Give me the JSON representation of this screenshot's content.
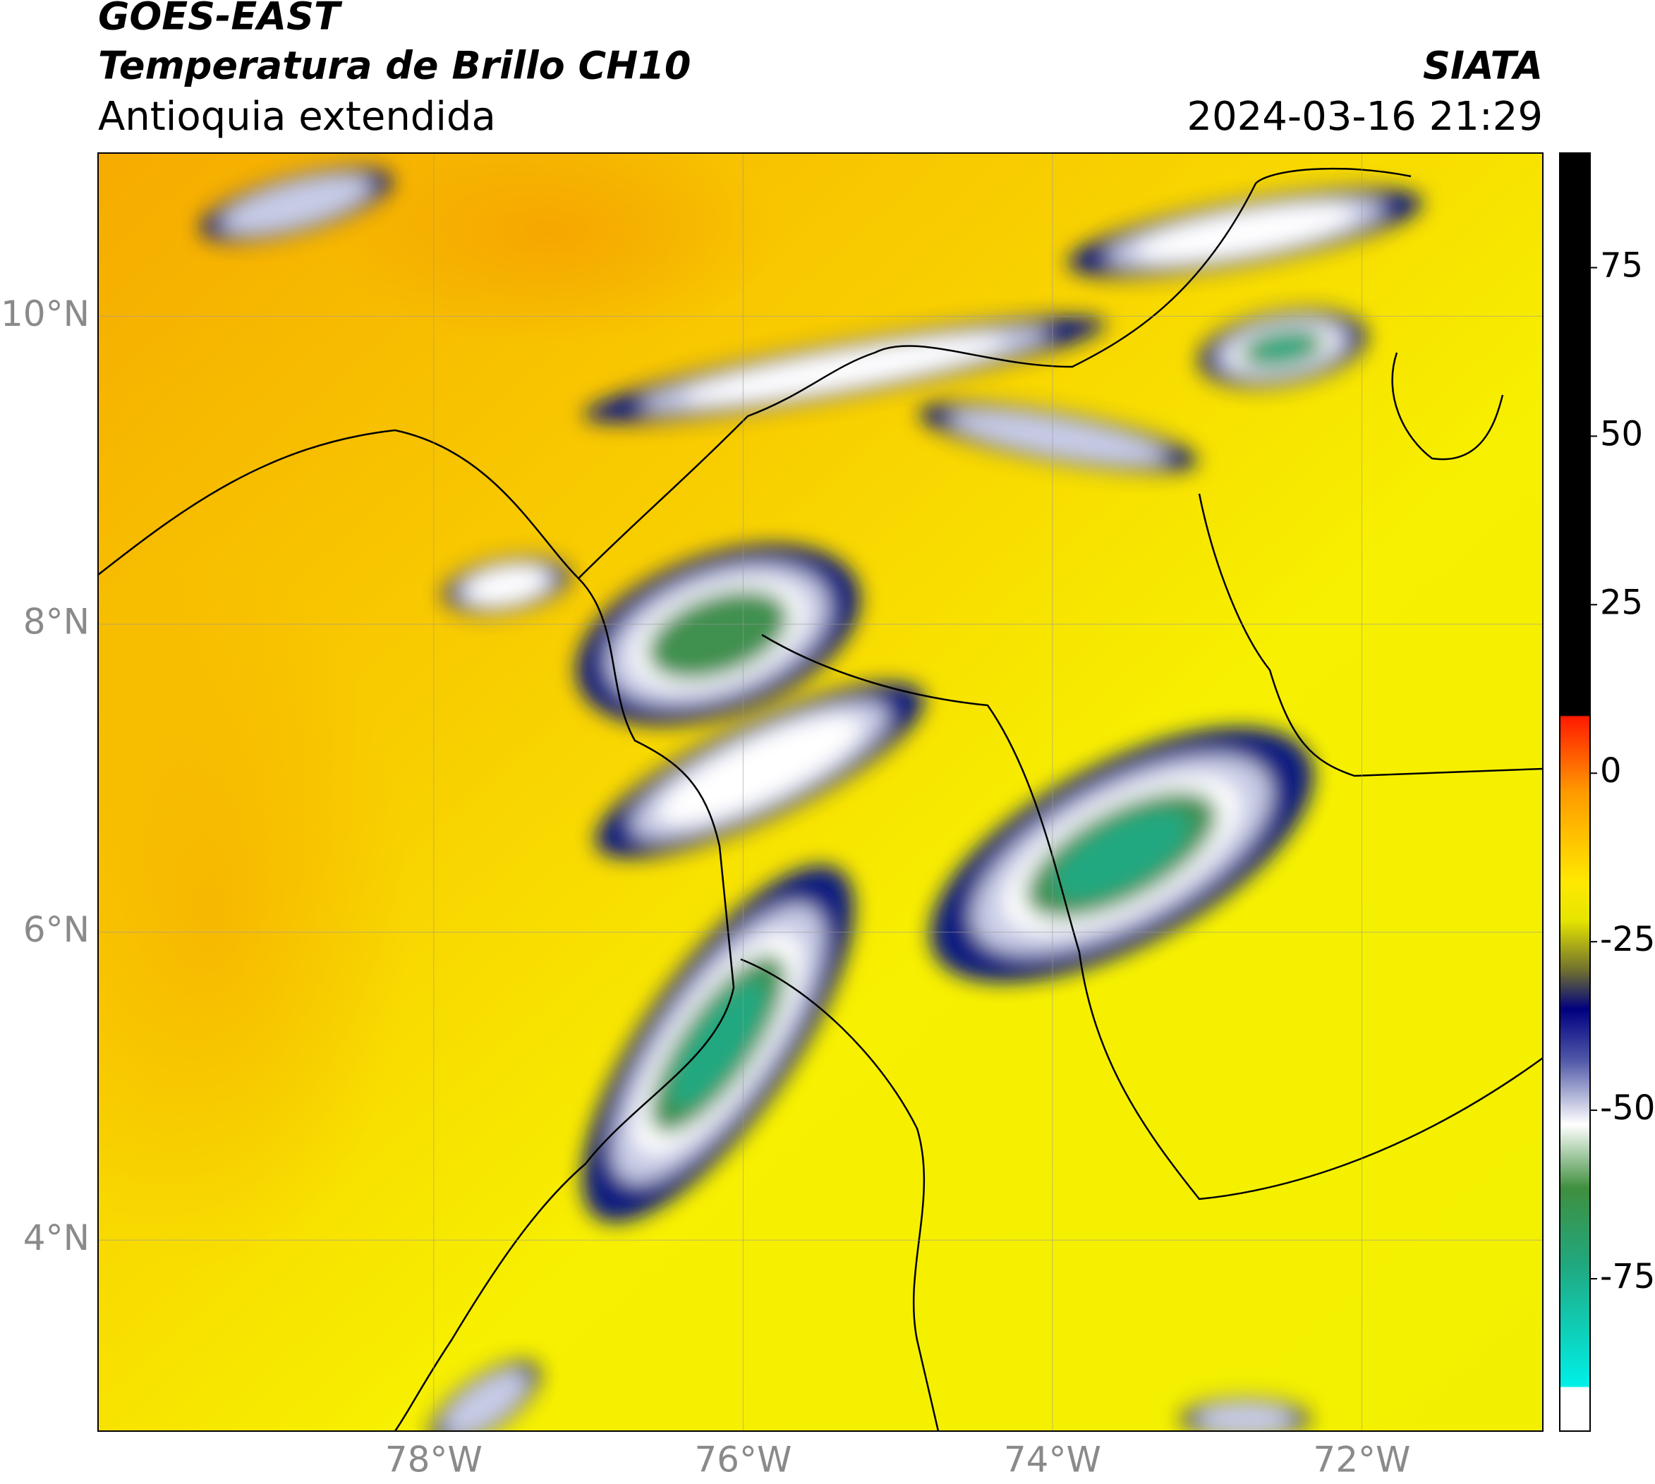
{
  "header": {
    "title": "GOES-EAST",
    "subtitle": "Temperatura de Brillo CH10",
    "region": "Antioquia extendida",
    "source": "SIATA",
    "datetime": "2024-03-16 21:29"
  },
  "map": {
    "latlim": [
      2.76,
      11.06
    ],
    "lonlim": [
      -80.17,
      -70.83
    ],
    "grid": true,
    "latticks": [
      {
        "value": 10,
        "label": "10°N"
      },
      {
        "value": 8,
        "label": "8°N"
      },
      {
        "value": 6,
        "label": "6°N"
      },
      {
        "value": 4,
        "label": "4°N"
      }
    ],
    "lonticks": [
      {
        "value": -78,
        "label": "78°W"
      },
      {
        "value": -76,
        "label": "76°W"
      },
      {
        "value": -74,
        "label": "74°W"
      },
      {
        "value": -72,
        "label": "72°W"
      }
    ]
  },
  "colorbar": {
    "lim": [
      -97.6,
      92
    ],
    "ticks": [
      -75,
      -50,
      -25,
      0,
      25,
      50,
      75
    ]
  }
}
